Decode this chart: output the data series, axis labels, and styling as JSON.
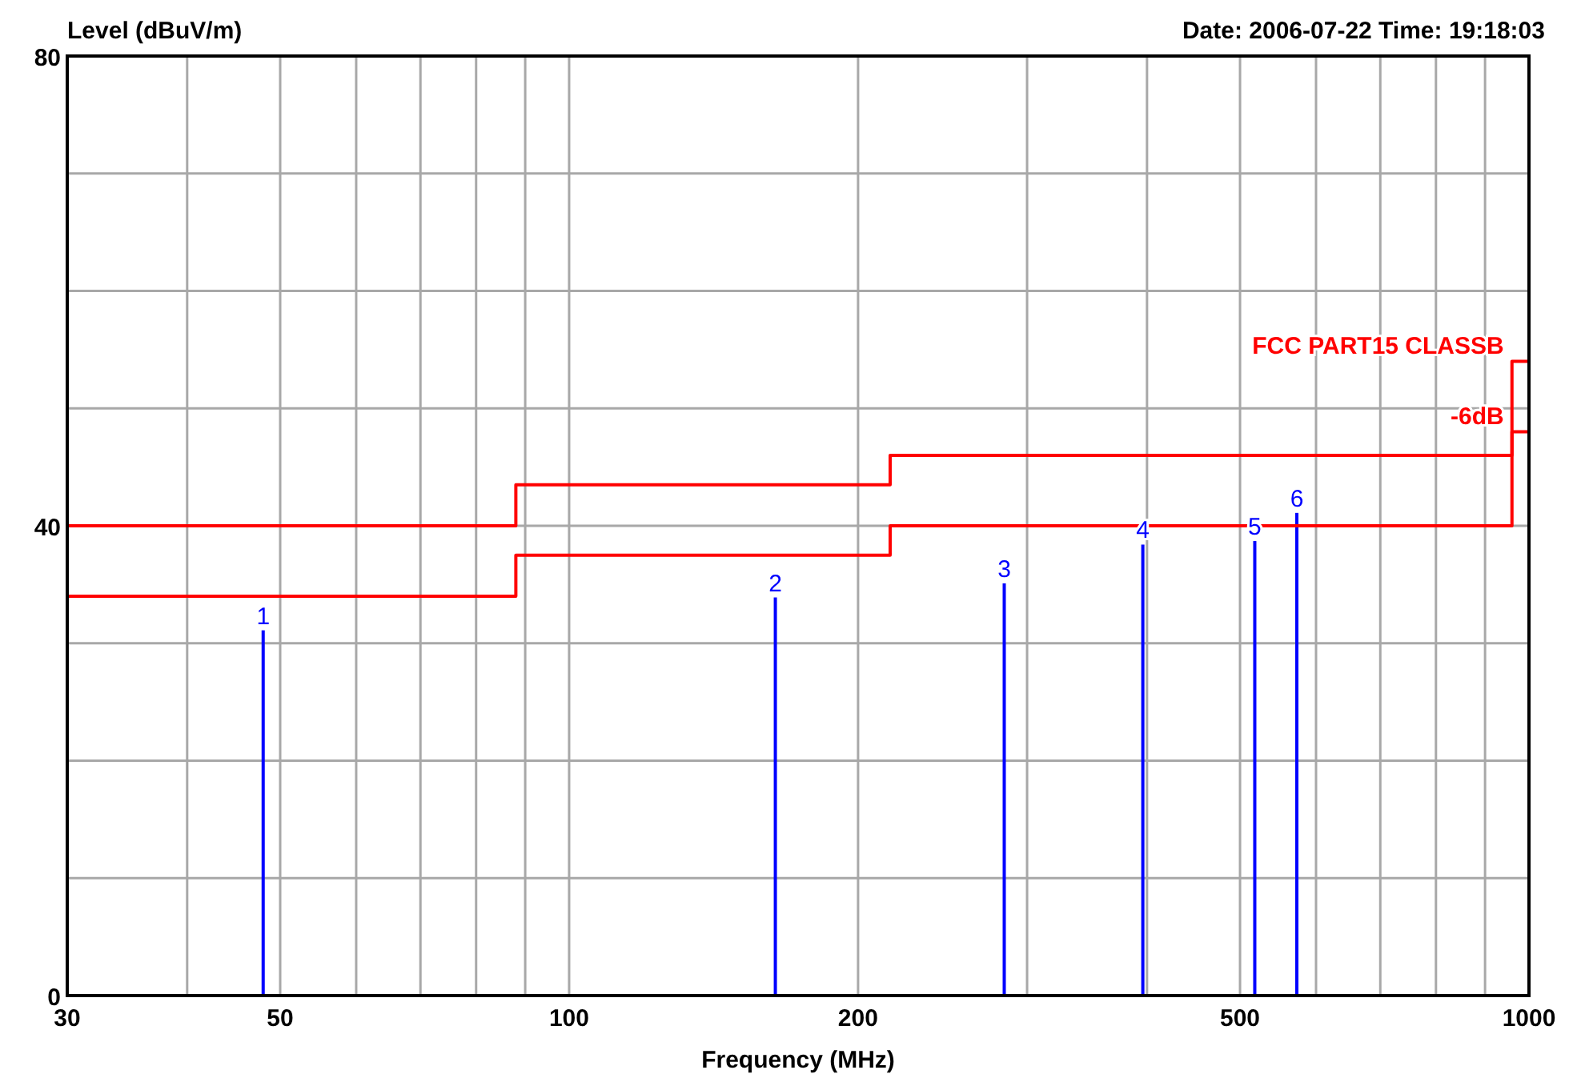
{
  "chart_data": {
    "type": "bar",
    "ylabel": "Level (dBuV/m)",
    "xlabel": "Frequency (MHz)",
    "log": "x",
    "xlim": [
      30,
      1000
    ],
    "ylim": [
      0,
      80
    ],
    "xticks": [
      30,
      {
        "value": 40,
        "label": null
      },
      50,
      {
        "value": 60,
        "label": null
      },
      {
        "value": 70,
        "label": null
      },
      {
        "value": 80,
        "label": null
      },
      {
        "value": 90,
        "label": null
      },
      100,
      200,
      {
        "value": 300,
        "label": null
      },
      {
        "value": 400,
        "label": null
      },
      500,
      {
        "value": 600,
        "label": null
      },
      {
        "value": 700,
        "label": null
      },
      {
        "value": 800,
        "label": null
      },
      {
        "value": 900,
        "label": null
      },
      1000
    ],
    "yticks": [
      0,
      {
        "value": 10,
        "label": null
      },
      {
        "value": 20,
        "label": null
      },
      {
        "value": 30,
        "label": null
      },
      40,
      {
        "value": 50,
        "label": null
      },
      {
        "value": 60,
        "label": null
      },
      {
        "value": 70,
        "label": null
      },
      80
    ],
    "grid": true,
    "legend": false,
    "series": [
      {
        "color": "#0000ff",
        "x": [
          48,
          164,
          284,
          396,
          518,
          573
        ],
        "values": [
          31.1,
          33.9,
          35.1,
          38.4,
          38.7,
          41.1
        ]
      },
      {
        "type": "line",
        "name": "FCC PART15 CLASSB",
        "color": "#ff0000",
        "x": [
          30,
          88,
          88,
          216,
          216,
          960,
          960,
          1000
        ],
        "values": [
          40,
          40,
          43.5,
          43.5,
          46,
          46,
          54,
          54
        ]
      },
      {
        "type": "line",
        "name": "-6dB",
        "color": "#ff0000",
        "x": [
          30,
          88,
          88,
          216,
          216,
          960,
          960,
          1000
        ],
        "values": [
          34,
          34,
          37.5,
          37.5,
          40,
          40,
          48,
          48
        ]
      }
    ],
    "annotations": [
      "Date: 2006-07-22  Time: 19:18:03",
      {
        "text": "1",
        "x": 48,
        "y": 31.1
      },
      {
        "text": "2",
        "x": 164,
        "y": 33.9
      },
      {
        "text": "3",
        "x": 284,
        "y": 35.1
      },
      {
        "text": "4",
        "x": 396,
        "y": 38.4
      },
      {
        "text": "5",
        "x": 518,
        "y": 38.7
      },
      {
        "text": "6",
        "x": 573,
        "y": 41.1
      }
    ]
  }
}
